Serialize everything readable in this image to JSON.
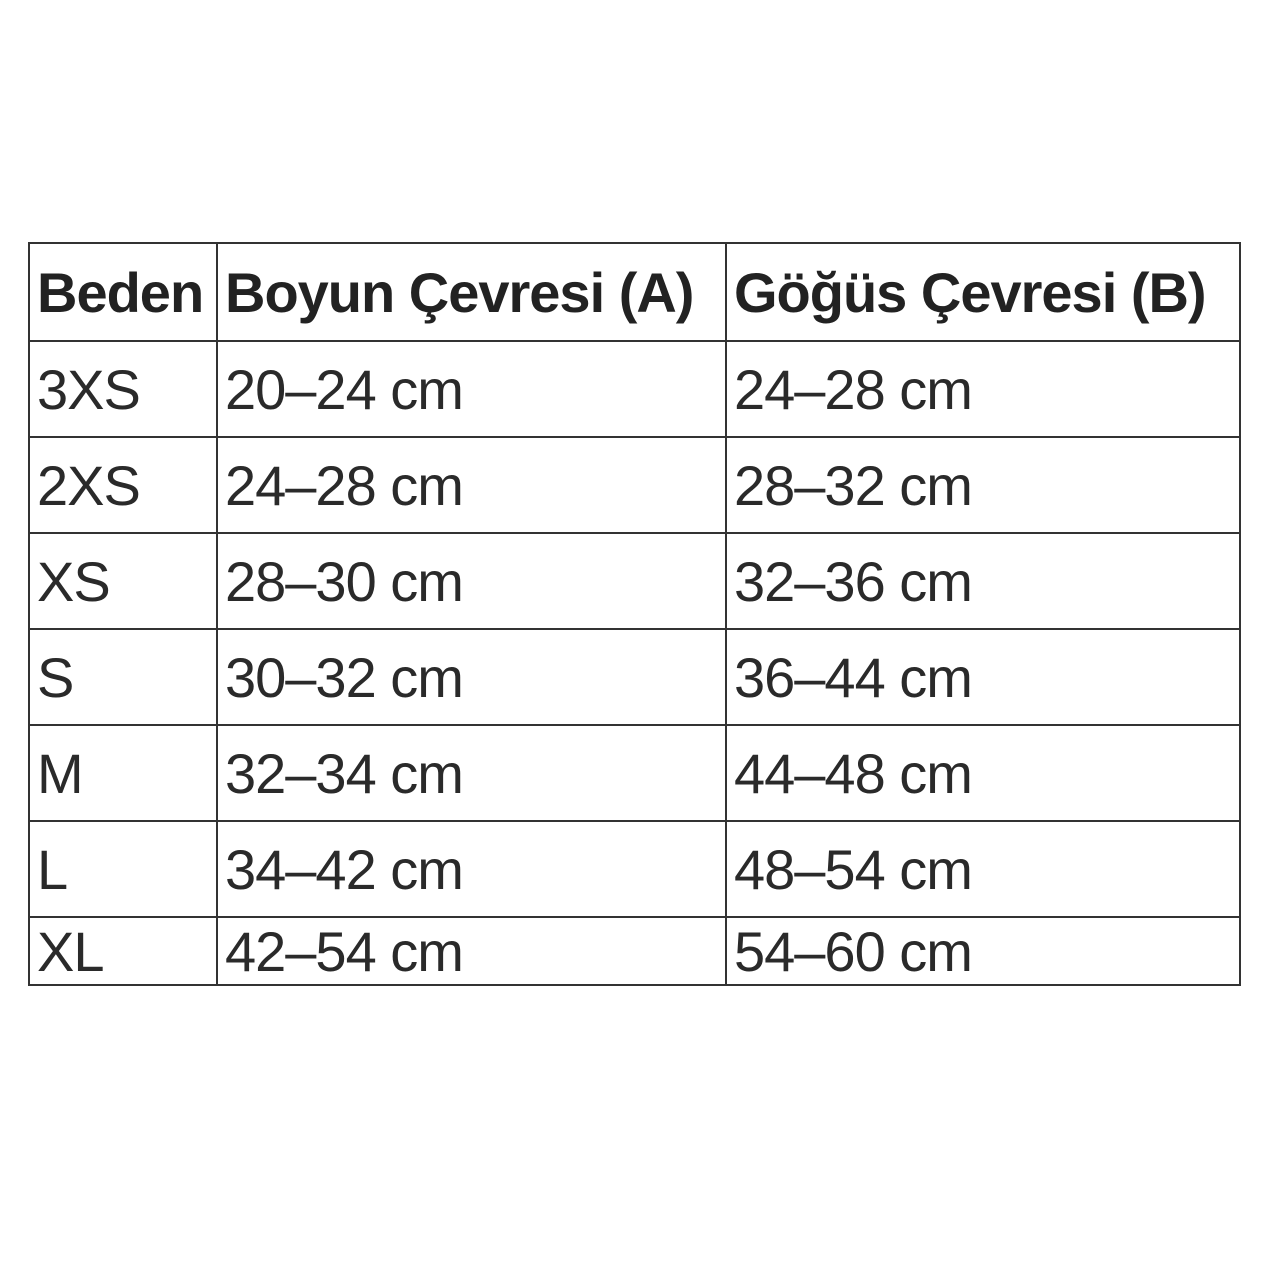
{
  "table": {
    "headers": [
      "Beden",
      "Boyun Çevresi (A)",
      "Göğüs Çevresi (B)"
    ],
    "rows": [
      [
        "3XS",
        "20–24 cm",
        "24–28 cm"
      ],
      [
        "2XS",
        "24–28 cm",
        "28–32 cm"
      ],
      [
        "XS",
        "28–30 cm",
        "32–36 cm"
      ],
      [
        "S",
        "30–32 cm",
        "36–44 cm"
      ],
      [
        "M",
        "32–34 cm",
        "44–48 cm"
      ],
      [
        "L",
        "34–42 cm",
        "48–54 cm"
      ],
      [
        "XL",
        "42–54 cm",
        "54–60 cm"
      ]
    ]
  }
}
